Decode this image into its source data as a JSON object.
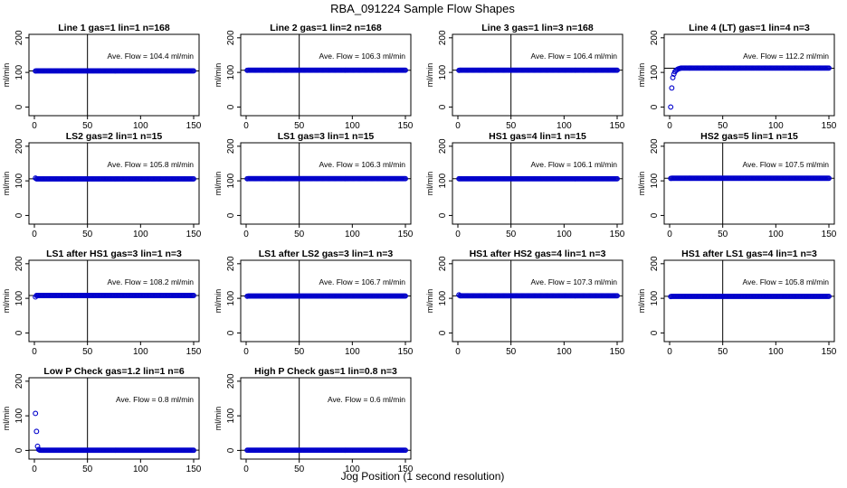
{
  "figure": {
    "title": "RBA_091224  Sample Flow Shapes",
    "xlabel": "Jog Position (1 second resolution)",
    "colors": {
      "points": "#0000cc",
      "axes": "#000000",
      "reference_line": "#000000"
    }
  },
  "chart_data": [
    {
      "type": "scatter",
      "title": "Line 1 gas=1 lin=1 n=168",
      "ylabel": "ml/min",
      "xlim": [
        0,
        150
      ],
      "ylim": [
        -25,
        210
      ],
      "xticks": [
        0,
        50,
        100,
        150
      ],
      "yticks": [
        0,
        100,
        200
      ],
      "vline_x": 50,
      "hline_y": 104.4,
      "annotation": "Ave. Flow =  104.4  ml/min",
      "shape": "flat",
      "values": {
        "start": 104,
        "plateau": 104.4
      }
    },
    {
      "type": "scatter",
      "title": "Line 2 gas=1 lin=2 n=168",
      "ylabel": "ml/min",
      "xlim": [
        0,
        150
      ],
      "ylim": [
        -25,
        210
      ],
      "xticks": [
        0,
        50,
        100,
        150
      ],
      "yticks": [
        0,
        100,
        200
      ],
      "vline_x": 50,
      "hline_y": 106.3,
      "annotation": "Ave. Flow =  106.3  ml/min",
      "shape": "flat",
      "values": {
        "start": 106,
        "plateau": 106.3
      }
    },
    {
      "type": "scatter",
      "title": "Line 3 gas=1 lin=3 n=168",
      "ylabel": "ml/min",
      "xlim": [
        0,
        150
      ],
      "ylim": [
        -25,
        210
      ],
      "xticks": [
        0,
        50,
        100,
        150
      ],
      "yticks": [
        0,
        100,
        200
      ],
      "vline_x": 50,
      "hline_y": 106.4,
      "annotation": "Ave. Flow =  106.4  ml/min",
      "shape": "flat",
      "values": {
        "start": 106,
        "plateau": 106.4
      }
    },
    {
      "type": "scatter",
      "title": "Line 4 (LT) gas=1 lin=4 n=3",
      "ylabel": "ml/min",
      "xlim": [
        0,
        150
      ],
      "ylim": [
        -25,
        210
      ],
      "xticks": [
        0,
        50,
        100,
        150
      ],
      "yticks": [
        0,
        100,
        200
      ],
      "vline_x": null,
      "hline_y": 112.2,
      "annotation": "Ave. Flow =  112.2  ml/min",
      "shape": "rise",
      "values": {
        "points": [
          [
            1,
            0
          ],
          [
            2,
            55
          ],
          [
            3,
            85
          ],
          [
            4,
            95
          ],
          [
            5,
            102
          ],
          [
            6,
            106
          ],
          [
            7,
            108
          ],
          [
            8,
            110
          ],
          [
            9,
            111
          ],
          [
            10,
            112
          ]
        ],
        "plateau": 112.5
      }
    },
    {
      "type": "scatter",
      "title": "LS2 gas=2 lin=1 n=15",
      "ylabel": "ml/min",
      "xlim": [
        0,
        150
      ],
      "ylim": [
        -25,
        210
      ],
      "xticks": [
        0,
        50,
        100,
        150
      ],
      "yticks": [
        0,
        100,
        200
      ],
      "vline_x": 50,
      "hline_y": 105.8,
      "annotation": "Ave. Flow =  105.8  ml/min",
      "shape": "flat",
      "values": {
        "start": 108,
        "plateau": 105.8
      }
    },
    {
      "type": "scatter",
      "title": "LS1 gas=3 lin=1 n=15",
      "ylabel": "ml/min",
      "xlim": [
        0,
        150
      ],
      "ylim": [
        -25,
        210
      ],
      "xticks": [
        0,
        50,
        100,
        150
      ],
      "yticks": [
        0,
        100,
        200
      ],
      "vline_x": 50,
      "hline_y": 106.3,
      "annotation": "Ave. Flow =  106.3  ml/min",
      "shape": "flat",
      "values": {
        "start": 106,
        "plateau": 106.3
      }
    },
    {
      "type": "scatter",
      "title": "HS1 gas=4 lin=1 n=15",
      "ylabel": "ml/min",
      "xlim": [
        0,
        150
      ],
      "ylim": [
        -25,
        210
      ],
      "xticks": [
        0,
        50,
        100,
        150
      ],
      "yticks": [
        0,
        100,
        200
      ],
      "vline_x": 50,
      "hline_y": 106.1,
      "annotation": "Ave. Flow =  106.1  ml/min",
      "shape": "flat",
      "values": {
        "start": 106,
        "plateau": 106.1
      }
    },
    {
      "type": "scatter",
      "title": "HS2 gas=5 lin=1 n=15",
      "ylabel": "ml/min",
      "xlim": [
        0,
        150
      ],
      "ylim": [
        -25,
        210
      ],
      "xticks": [
        0,
        50,
        100,
        150
      ],
      "yticks": [
        0,
        100,
        200
      ],
      "vline_x": 50,
      "hline_y": 107.5,
      "annotation": "Ave. Flow =  107.5  ml/min",
      "shape": "flat",
      "values": {
        "start": 107,
        "plateau": 107.5
      }
    },
    {
      "type": "scatter",
      "title": "LS1 after HS1 gas=3 lin=1 n=3",
      "ylabel": "ml/min",
      "xlim": [
        0,
        150
      ],
      "ylim": [
        -25,
        210
      ],
      "xticks": [
        0,
        50,
        100,
        150
      ],
      "yticks": [
        0,
        100,
        200
      ],
      "vline_x": 50,
      "hline_y": 108.2,
      "annotation": "Ave. Flow =  108.2  ml/min",
      "shape": "flat",
      "values": {
        "start": 104,
        "plateau": 108.2
      }
    },
    {
      "type": "scatter",
      "title": "LS1 after LS2 gas=3 lin=1 n=3",
      "ylabel": "ml/min",
      "xlim": [
        0,
        150
      ],
      "ylim": [
        -25,
        210
      ],
      "xticks": [
        0,
        50,
        100,
        150
      ],
      "yticks": [
        0,
        100,
        200
      ],
      "vline_x": 50,
      "hline_y": 106.7,
      "annotation": "Ave. Flow =  106.7  ml/min",
      "shape": "flat",
      "values": {
        "start": 106,
        "plateau": 106.7
      }
    },
    {
      "type": "scatter",
      "title": "HS1 after HS2 gas=4 lin=1 n=3",
      "ylabel": "ml/min",
      "xlim": [
        0,
        150
      ],
      "ylim": [
        -25,
        210
      ],
      "xticks": [
        0,
        50,
        100,
        150
      ],
      "yticks": [
        0,
        100,
        200
      ],
      "vline_x": 50,
      "hline_y": 107.3,
      "annotation": "Ave. Flow =  107.3  ml/min",
      "shape": "flat",
      "values": {
        "start": 110,
        "plateau": 107.3
      }
    },
    {
      "type": "scatter",
      "title": "HS1 after LS1 gas=4 lin=1 n=3",
      "ylabel": "ml/min",
      "xlim": [
        0,
        150
      ],
      "ylim": [
        -25,
        210
      ],
      "xticks": [
        0,
        50,
        100,
        150
      ],
      "yticks": [
        0,
        100,
        200
      ],
      "vline_x": 50,
      "hline_y": 105.8,
      "annotation": "Ave. Flow =  105.8  ml/min",
      "shape": "flat",
      "values": {
        "start": 105,
        "plateau": 105.8
      }
    },
    {
      "type": "scatter",
      "title": "Low P Check gas=1.2 lin=1 n=6",
      "ylabel": "ml/min",
      "xlim": [
        0,
        150
      ],
      "ylim": [
        -25,
        210
      ],
      "xticks": [
        0,
        50,
        100,
        150
      ],
      "yticks": [
        0,
        100,
        200
      ],
      "vline_x": 50,
      "hline_y": 0.8,
      "annotation": "Ave. Flow =  0.8  ml/min",
      "shape": "decay",
      "values": {
        "points": [
          [
            1,
            107
          ],
          [
            2,
            55
          ],
          [
            3,
            12
          ],
          [
            4,
            3
          ],
          [
            5,
            1
          ]
        ],
        "plateau": 0.5
      }
    },
    {
      "type": "scatter",
      "title": "High P Check gas=1 lin=0.8 n=3",
      "ylabel": "ml/min",
      "xlim": [
        0,
        150
      ],
      "ylim": [
        -25,
        210
      ],
      "xticks": [
        0,
        50,
        100,
        150
      ],
      "yticks": [
        0,
        100,
        200
      ],
      "vline_x": 50,
      "hline_y": 0.6,
      "annotation": "Ave. Flow =  0.6  ml/min",
      "shape": "flat",
      "values": {
        "start": 0.6,
        "plateau": 0.6
      }
    }
  ]
}
